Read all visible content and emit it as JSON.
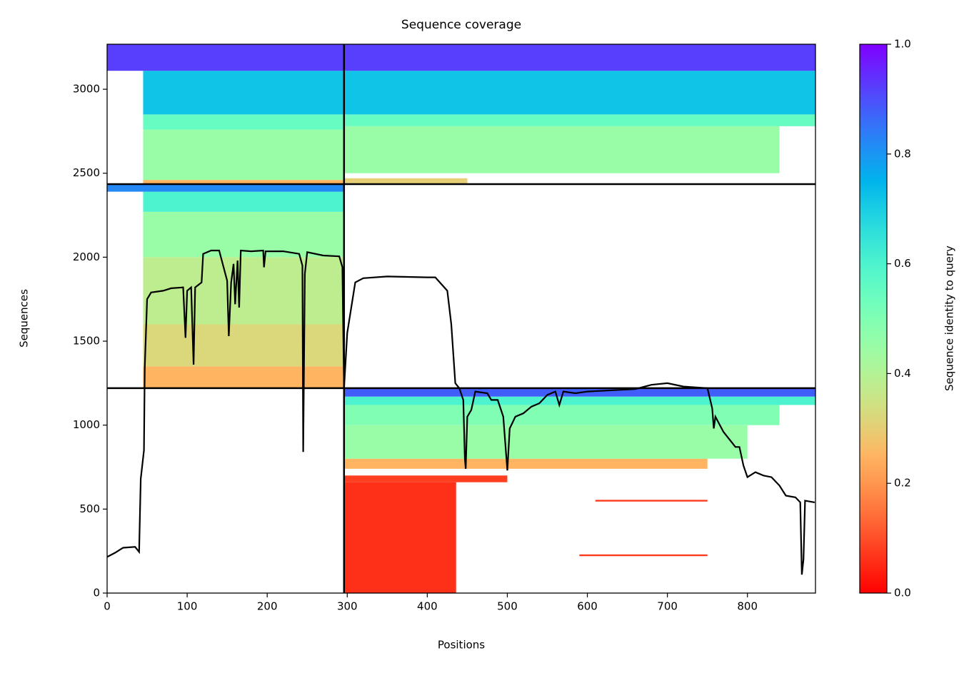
{
  "chart_data": {
    "type": "coverage",
    "title": "Sequence coverage",
    "xlabel": "Positions",
    "ylabel": "Sequences",
    "xlim": [
      0,
      885
    ],
    "ylim": [
      0,
      3268
    ],
    "xticks": [
      0,
      100,
      200,
      300,
      400,
      500,
      600,
      700,
      800
    ],
    "yticks": [
      0,
      500,
      1000,
      1500,
      2000,
      2500,
      3000
    ],
    "colormap": "rainbow_r",
    "colorbar": {
      "label": "Sequence identity to query",
      "lim": [
        0,
        1
      ],
      "ticks": [
        {
          "value": 0,
          "label": "0.0"
        },
        {
          "value": 0.2,
          "label": "0.2"
        },
        {
          "value": 0.4,
          "label": "0.4"
        },
        {
          "value": 0.6,
          "label": "0.6"
        },
        {
          "value": 0.8,
          "label": "0.8"
        },
        {
          "value": 1,
          "label": "1.0"
        }
      ]
    },
    "blocks": [
      {
        "x": [
          45,
          296
        ],
        "y": [
          2435,
          2460
        ],
        "identity": 0.25
      },
      {
        "x": [
          45,
          296
        ],
        "y": [
          2460,
          2760
        ],
        "identity": 0.45
      },
      {
        "x": [
          45,
          296
        ],
        "y": [
          2760,
          2850
        ],
        "identity": 0.55
      },
      {
        "x": [
          45,
          296
        ],
        "y": [
          2850,
          3110
        ],
        "identity": 0.72
      },
      {
        "x": [
          0,
          296
        ],
        "y": [
          3110,
          3268
        ],
        "identity": 0.92
      },
      {
        "x": [
          296,
          450
        ],
        "y": [
          2440,
          2470
        ],
        "identity": 0.3
      },
      {
        "x": [
          296,
          840
        ],
        "y": [
          2500,
          2780
        ],
        "identity": 0.45
      },
      {
        "x": [
          296,
          885
        ],
        "y": [
          2780,
          2850
        ],
        "identity": 0.55
      },
      {
        "x": [
          296,
          885
        ],
        "y": [
          2850,
          3110
        ],
        "identity": 0.72
      },
      {
        "x": [
          296,
          885
        ],
        "y": [
          3110,
          3268
        ],
        "identity": 0.92
      },
      {
        "x": [
          45,
          296
        ],
        "y": [
          1220,
          1350
        ],
        "identity": 0.25
      },
      {
        "x": [
          45,
          296
        ],
        "y": [
          1350,
          1600
        ],
        "identity": 0.32
      },
      {
        "x": [
          45,
          296
        ],
        "y": [
          1600,
          2000
        ],
        "identity": 0.38
      },
      {
        "x": [
          45,
          296
        ],
        "y": [
          2000,
          2270
        ],
        "identity": 0.45
      },
      {
        "x": [
          45,
          296
        ],
        "y": [
          2270,
          2390
        ],
        "identity": 0.6
      },
      {
        "x": [
          0,
          296
        ],
        "y": [
          2390,
          2435
        ],
        "identity": 0.82
      },
      {
        "x": [
          296,
          436
        ],
        "y": [
          0,
          660
        ],
        "identity": 0.06
      },
      {
        "x": [
          296,
          500
        ],
        "y": [
          660,
          700
        ],
        "identity": 0.08
      },
      {
        "x": [
          296,
          750
        ],
        "y": [
          740,
          800
        ],
        "identity": 0.25
      },
      {
        "x": [
          296,
          800
        ],
        "y": [
          800,
          1000
        ],
        "identity": 0.45
      },
      {
        "x": [
          296,
          840
        ],
        "y": [
          1000,
          1120
        ],
        "identity": 0.5
      },
      {
        "x": [
          296,
          885
        ],
        "y": [
          1120,
          1170
        ],
        "identity": 0.6
      },
      {
        "x": [
          296,
          885
        ],
        "y": [
          1170,
          1220
        ],
        "identity": 0.88
      },
      {
        "x": [
          610,
          750
        ],
        "y": [
          545,
          555
        ],
        "identity": 0.07
      },
      {
        "x": [
          590,
          750
        ],
        "y": [
          220,
          230
        ],
        "identity": 0.07
      }
    ],
    "dividers": {
      "x": [
        296
      ],
      "y": [
        1220,
        2435
      ],
      "color": "#000000"
    },
    "color": "#000000",
    "x": [
      0,
      10,
      20,
      35,
      40,
      42,
      46,
      47,
      50,
      55,
      70,
      80,
      95,
      98,
      100,
      105,
      108,
      110,
      118,
      120,
      130,
      140,
      150,
      152,
      155,
      158,
      160,
      163,
      165,
      167,
      180,
      195,
      196,
      198,
      220,
      240,
      244,
      245,
      247,
      250,
      270,
      290,
      294,
      296,
      300,
      310,
      320,
      350,
      400,
      410,
      425,
      430,
      435,
      440,
      445,
      447,
      448,
      450,
      455,
      460,
      475,
      480,
      488,
      495,
      500,
      503,
      510,
      520,
      530,
      540,
      550,
      560,
      565,
      570,
      585,
      600,
      640,
      660,
      680,
      700,
      720,
      750,
      756,
      758,
      760,
      770,
      780,
      785,
      790,
      795,
      800,
      810,
      820,
      830,
      840,
      848,
      860,
      866,
      868,
      870,
      872,
      884
    ],
    "values": [
      215,
      240,
      270,
      275,
      245,
      680,
      850,
      1340,
      1750,
      1790,
      1800,
      1815,
      1820,
      1520,
      1800,
      1820,
      1360,
      1820,
      1850,
      2020,
      2040,
      2040,
      1860,
      1530,
      1850,
      1960,
      1720,
      1980,
      1700,
      2040,
      2035,
      2040,
      1940,
      2035,
      2035,
      2020,
      1950,
      840,
      1900,
      2030,
      2010,
      2005,
      1940,
      1220,
      1550,
      1850,
      1875,
      1885,
      1880,
      1880,
      1800,
      1600,
      1250,
      1220,
      1150,
      800,
      740,
      1050,
      1090,
      1200,
      1190,
      1150,
      1150,
      1050,
      730,
      980,
      1050,
      1070,
      1110,
      1130,
      1180,
      1200,
      1120,
      1200,
      1190,
      1200,
      1210,
      1215,
      1240,
      1250,
      1230,
      1220,
      1100,
      980,
      1050,
      960,
      900,
      870,
      870,
      760,
      690,
      720,
      700,
      690,
      640,
      580,
      570,
      540,
      110,
      200,
      550,
      540
    ]
  }
}
